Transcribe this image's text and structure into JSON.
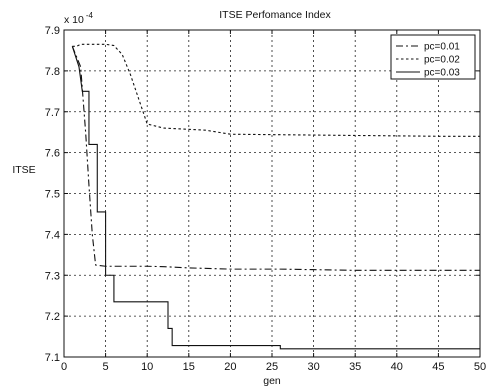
{
  "chart_data": {
    "type": "line",
    "title": "ITSE Perfomance Index",
    "xlabel": "gen",
    "ylabel": "ITSE",
    "y_multiplier_label": "x 10",
    "y_multiplier_exponent": "-4",
    "xlim": [
      0,
      50
    ],
    "ylim": [
      7.1,
      7.9
    ],
    "x_ticks": [
      "0",
      "5",
      "10",
      "15",
      "20",
      "25",
      "30",
      "35",
      "40",
      "45",
      "50"
    ],
    "y_ticks": [
      "7.1",
      "7.2",
      "7.3",
      "7.4",
      "7.5",
      "7.6",
      "7.7",
      "7.8",
      "7.9"
    ],
    "grid": true,
    "legend_position": "top-right",
    "series": [
      {
        "name": "pc=0.01",
        "style": "dash-dot",
        "color": "#111111",
        "x": [
          1,
          2,
          2.6,
          3,
          3.4,
          3.8,
          5,
          10,
          12,
          15,
          20,
          26,
          35,
          45,
          50
        ],
        "y": [
          7.86,
          7.81,
          7.65,
          7.52,
          7.4,
          7.325,
          7.322,
          7.322,
          7.321,
          7.318,
          7.315,
          7.315,
          7.312,
          7.312,
          7.312
        ]
      },
      {
        "name": "pc=0.02",
        "style": "dotted",
        "color": "#111111",
        "x": [
          1,
          1.5,
          2,
          5,
          6,
          7,
          8,
          9,
          10,
          11,
          12,
          17,
          20,
          30,
          40,
          45,
          50
        ],
        "y": [
          7.86,
          7.86,
          7.865,
          7.865,
          7.862,
          7.84,
          7.79,
          7.73,
          7.67,
          7.665,
          7.66,
          7.655,
          7.645,
          7.643,
          7.641,
          7.64,
          7.64
        ]
      },
      {
        "name": "pc=0.03",
        "style": "solid",
        "color": "#111111",
        "x": [
          1,
          1.8,
          2.2,
          3,
          3,
          4,
          4,
          5,
          5,
          6,
          6,
          12.5,
          12.5,
          13,
          13,
          26,
          26,
          50
        ],
        "y": [
          7.86,
          7.81,
          7.75,
          7.75,
          7.62,
          7.62,
          7.455,
          7.455,
          7.3,
          7.3,
          7.235,
          7.235,
          7.17,
          7.17,
          7.128,
          7.128,
          7.12,
          7.12
        ]
      }
    ]
  }
}
